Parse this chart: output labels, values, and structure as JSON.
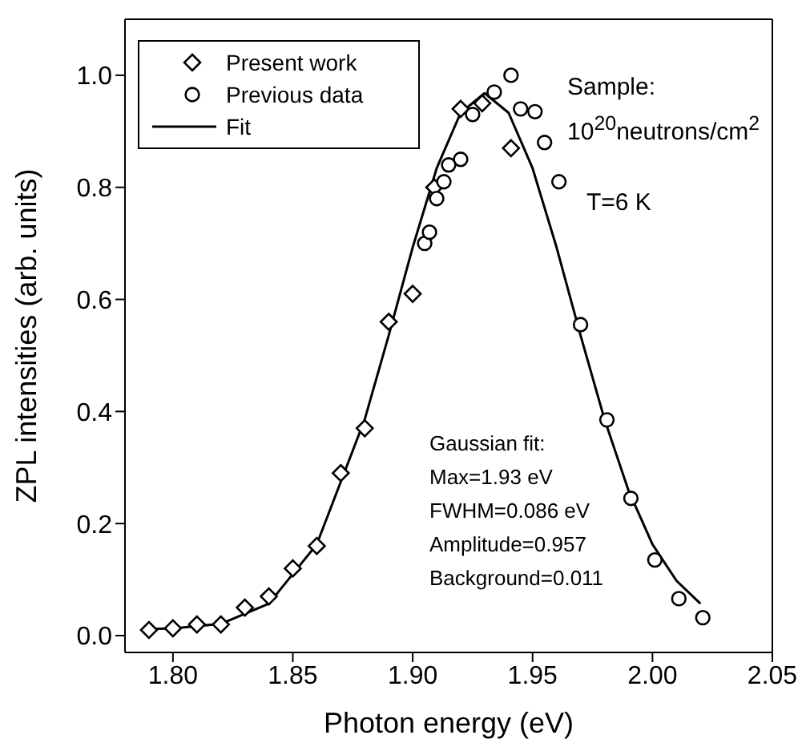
{
  "chart_data": {
    "type": "scatter",
    "xlabel": "Photon energy (eV)",
    "ylabel": "ZPL intensities  (arb. units)",
    "xlim": [
      1.78,
      2.05
    ],
    "ylim": [
      -0.03,
      1.1
    ],
    "xticks": [
      {
        "value": 1.8,
        "label": "1.80"
      },
      {
        "value": 1.85,
        "label": "1.85"
      },
      {
        "value": 1.9,
        "label": "1.90"
      },
      {
        "value": 1.95,
        "label": "1.95"
      },
      {
        "value": 2.0,
        "label": "2.00"
      },
      {
        "value": 2.05,
        "label": "2.05"
      }
    ],
    "yticks": [
      {
        "value": 0,
        "label": "0.0"
      },
      0.2,
      0.4,
      0.6,
      0.8,
      {
        "value": 1,
        "label": "1.0"
      }
    ],
    "legend": "top left",
    "annotations": [
      "Sample:",
      "10$^{20}$neutrons/cm$^{2}$",
      "T=6 K",
      "Gaussian fit:",
      "Max=1.93 eV",
      "FWHM=0.086 eV",
      "Amplitude=0.957",
      "Background=0.011"
    ],
    "series": [
      {
        "name": "Present work",
        "marker": "diamond",
        "color": "#000000",
        "x": [
          1.79,
          1.8,
          1.81,
          1.82,
          1.83,
          1.84,
          1.85,
          1.86,
          1.87,
          1.88,
          1.89,
          1.9,
          1.909,
          1.92,
          1.929,
          1.941
        ],
        "values": [
          0.01,
          0.013,
          0.02,
          0.02,
          0.05,
          0.07,
          0.12,
          0.16,
          0.29,
          0.37,
          0.56,
          0.61,
          0.8,
          0.94,
          0.95,
          0.87
        ]
      },
      {
        "name": "Previous data",
        "marker": "circle",
        "color": "#000000",
        "x": [
          1.905,
          1.907,
          1.91,
          1.913,
          1.915,
          1.92,
          1.925,
          1.934,
          1.941,
          1.945,
          1.951,
          1.955,
          1.961,
          1.97,
          1.981,
          1.991,
          2.001,
          2.011,
          2.021
        ],
        "values": [
          0.7,
          0.72,
          0.78,
          0.81,
          0.84,
          0.85,
          0.93,
          0.97,
          1.0,
          0.94,
          0.935,
          0.88,
          0.81,
          0.555,
          0.385,
          0.245,
          0.135,
          0.066,
          0.032
        ]
      },
      {
        "name": "Fit",
        "type": "line",
        "marker": "none",
        "line_style": "solid",
        "color": "#000000",
        "x": [
          1.79,
          1.8,
          1.82,
          1.84,
          1.86,
          1.88,
          1.89,
          1.9,
          1.91,
          1.92,
          1.93,
          1.94,
          1.95,
          1.96,
          1.97,
          1.98,
          1.99,
          2.0,
          2.01,
          2.02
        ],
        "values": [
          0.012,
          0.013,
          0.021,
          0.057,
          0.163,
          0.386,
          0.536,
          0.693,
          0.834,
          0.933,
          0.968,
          0.933,
          0.834,
          0.693,
          0.536,
          0.386,
          0.259,
          0.163,
          0.098,
          0.057
        ]
      }
    ]
  }
}
